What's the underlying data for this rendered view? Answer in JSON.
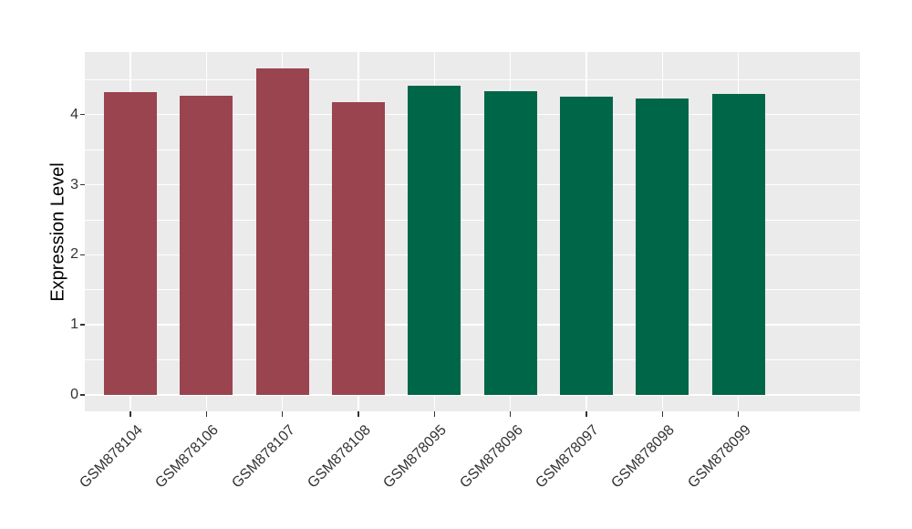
{
  "chart_data": {
    "type": "bar",
    "title": "",
    "xlabel": "",
    "ylabel": "Expression Level",
    "categories": [
      "GSM878104",
      "GSM878106",
      "GSM878107",
      "GSM878108",
      "GSM878095",
      "GSM878096",
      "GSM878097",
      "GSM878098",
      "GSM878099"
    ],
    "values": [
      4.32,
      4.27,
      4.66,
      4.18,
      4.41,
      4.34,
      4.26,
      4.23,
      4.3
    ],
    "bar_colors": [
      "#9A4450",
      "#9A4450",
      "#9A4450",
      "#9A4450",
      "#006648",
      "#006648",
      "#006648",
      "#006648",
      "#006648"
    ],
    "group_colors": {
      "left_group": "#9A4450",
      "right_group": "#006648"
    },
    "yticks": [
      0,
      1,
      2,
      3,
      4
    ],
    "minor_yticks": [
      0.5,
      1.5,
      2.5,
      3.5,
      4.5
    ],
    "ylim": [
      -0.233,
      4.893
    ],
    "bar_rel_width": 0.7,
    "x_label_angle": -45,
    "grid": "on",
    "legend": "none",
    "panel_bg": "#EBEBEB",
    "grid_color": "#FFFFFF",
    "tick_color": "#333333",
    "axis_text_color": "#333333",
    "axis_title_color": "#000000",
    "figure_bg": "#FFFFFF"
  }
}
